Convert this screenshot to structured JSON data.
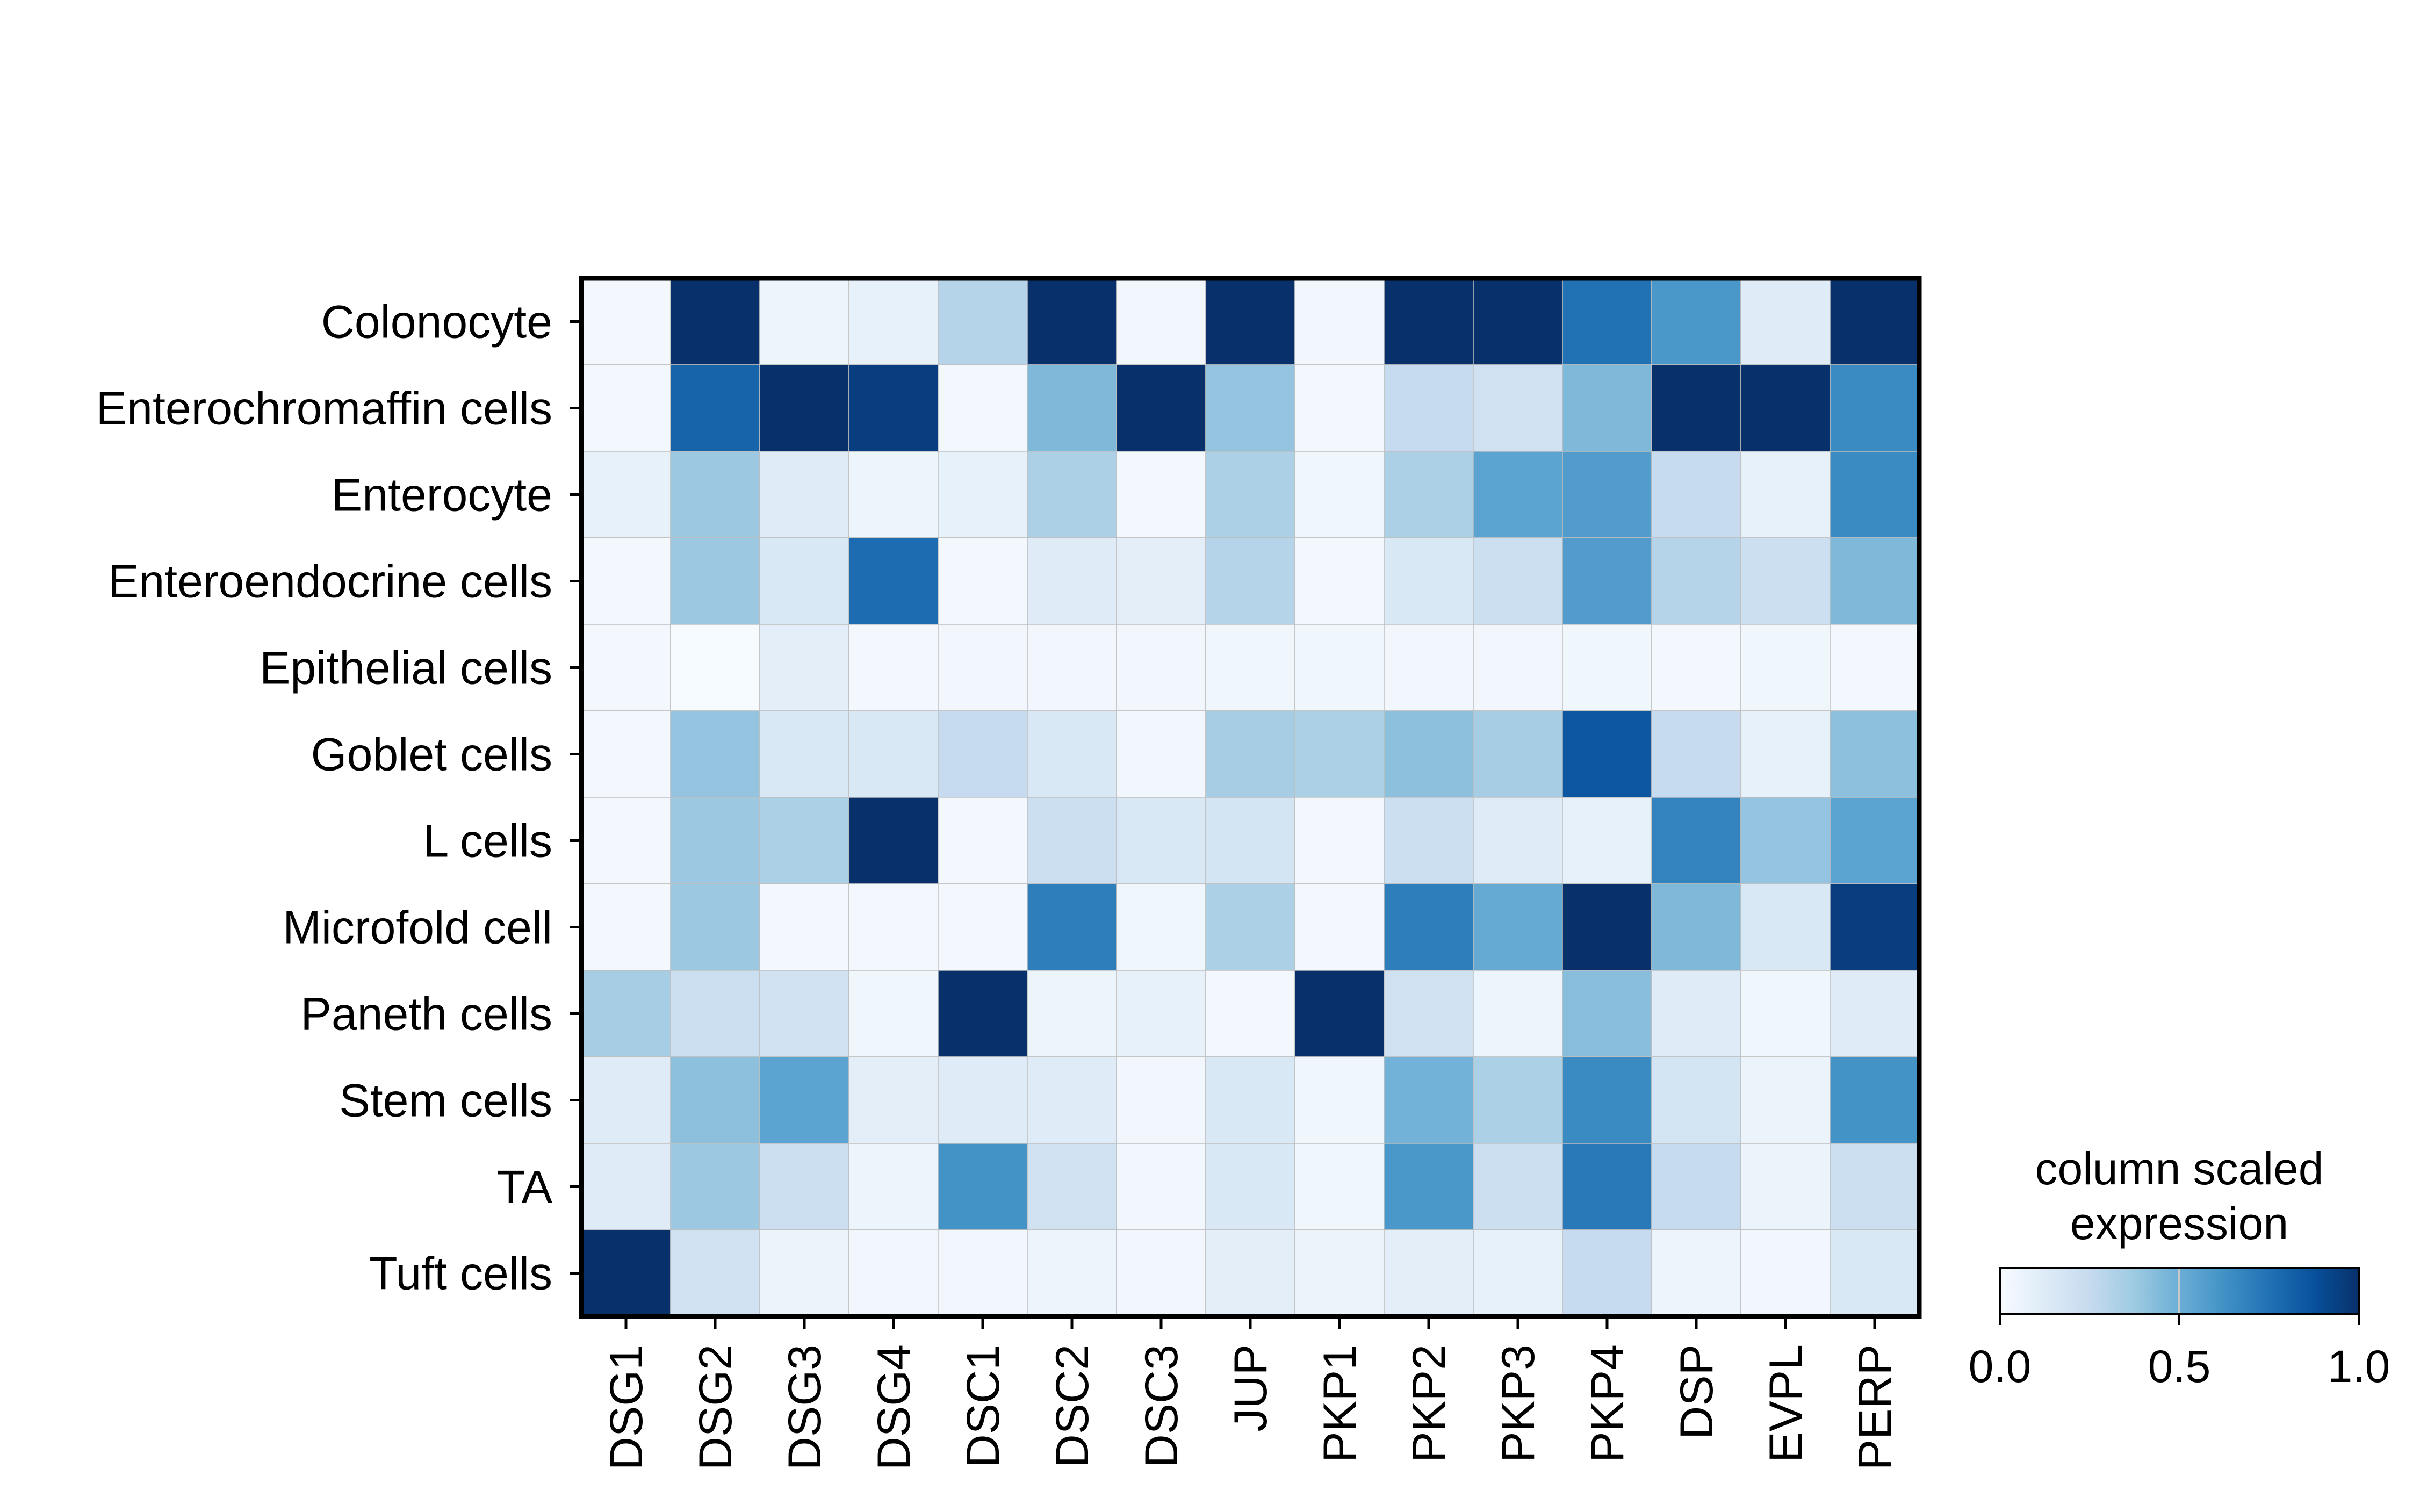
{
  "chart_data": {
    "type": "heatmap",
    "rows": [
      "Colonocyte",
      "Enterochromaffin cells",
      "Enterocyte",
      "Enteroendocrine cells",
      "Epithelial cells",
      "Goblet cells",
      "L cells",
      "Microfold cell",
      "Paneth cells",
      "Stem cells",
      "TA",
      "Tuft cells"
    ],
    "columns": [
      "DSG1",
      "DSG2",
      "DSG3",
      "DSG4",
      "DSC1",
      "DSC2",
      "DSC3",
      "JUP",
      "PKP1",
      "PKP2",
      "PKP3",
      "PKP4",
      "DSP",
      "EVPL",
      "PERP"
    ],
    "values": [
      [
        0.02,
        1.0,
        0.05,
        0.08,
        0.3,
        1.0,
        0.03,
        1.0,
        0.03,
        1.0,
        1.0,
        0.75,
        0.6,
        0.12,
        1.0
      ],
      [
        0.02,
        0.8,
        1.0,
        0.95,
        0.02,
        0.45,
        1.0,
        0.4,
        0.02,
        0.25,
        0.2,
        0.45,
        1.0,
        1.0,
        0.65
      ],
      [
        0.08,
        0.38,
        0.12,
        0.05,
        0.08,
        0.33,
        0.02,
        0.33,
        0.04,
        0.33,
        0.55,
        0.58,
        0.25,
        0.08,
        0.65
      ],
      [
        0.02,
        0.38,
        0.15,
        0.77,
        0.02,
        0.12,
        0.1,
        0.3,
        0.02,
        0.15,
        0.22,
        0.58,
        0.3,
        0.22,
        0.45
      ],
      [
        0.02,
        0.01,
        0.1,
        0.02,
        0.03,
        0.03,
        0.03,
        0.04,
        0.04,
        0.03,
        0.03,
        0.04,
        0.02,
        0.04,
        0.02
      ],
      [
        0.02,
        0.4,
        0.15,
        0.15,
        0.25,
        0.15,
        0.03,
        0.35,
        0.33,
        0.42,
        0.35,
        0.85,
        0.25,
        0.08,
        0.42
      ],
      [
        0.02,
        0.38,
        0.33,
        1.0,
        0.02,
        0.22,
        0.15,
        0.18,
        0.02,
        0.22,
        0.12,
        0.08,
        0.68,
        0.4,
        0.55
      ],
      [
        0.02,
        0.38,
        0.02,
        0.02,
        0.02,
        0.7,
        0.04,
        0.33,
        0.02,
        0.7,
        0.52,
        1.0,
        0.45,
        0.15,
        0.95
      ],
      [
        0.35,
        0.22,
        0.2,
        0.04,
        1.0,
        0.05,
        0.08,
        0.02,
        1.0,
        0.2,
        0.05,
        0.43,
        0.12,
        0.04,
        0.12
      ],
      [
        0.12,
        0.42,
        0.55,
        0.1,
        0.12,
        0.12,
        0.03,
        0.15,
        0.04,
        0.48,
        0.33,
        0.65,
        0.18,
        0.06,
        0.62
      ],
      [
        0.12,
        0.38,
        0.22,
        0.05,
        0.62,
        0.2,
        0.03,
        0.15,
        0.04,
        0.6,
        0.22,
        0.72,
        0.25,
        0.06,
        0.22
      ],
      [
        1.0,
        0.2,
        0.06,
        0.03,
        0.03,
        0.05,
        0.03,
        0.1,
        0.06,
        0.1,
        0.08,
        0.25,
        0.05,
        0.03,
        0.15
      ]
    ],
    "colormap": {
      "name": "Blues",
      "stops": [
        "#f7fbff",
        "#deebf7",
        "#c6dbef",
        "#9ecae1",
        "#6baed6",
        "#4292c6",
        "#2171b5",
        "#08519c",
        "#08306b"
      ]
    },
    "vmin": 0.0,
    "vmax": 1.0,
    "colorbar": {
      "title_lines": [
        "column scaled",
        "expression"
      ],
      "ticks": [
        "0.0",
        "0.5",
        "1.0"
      ],
      "orientation": "horizontal",
      "position": "bottom-right"
    },
    "grid": true
  }
}
